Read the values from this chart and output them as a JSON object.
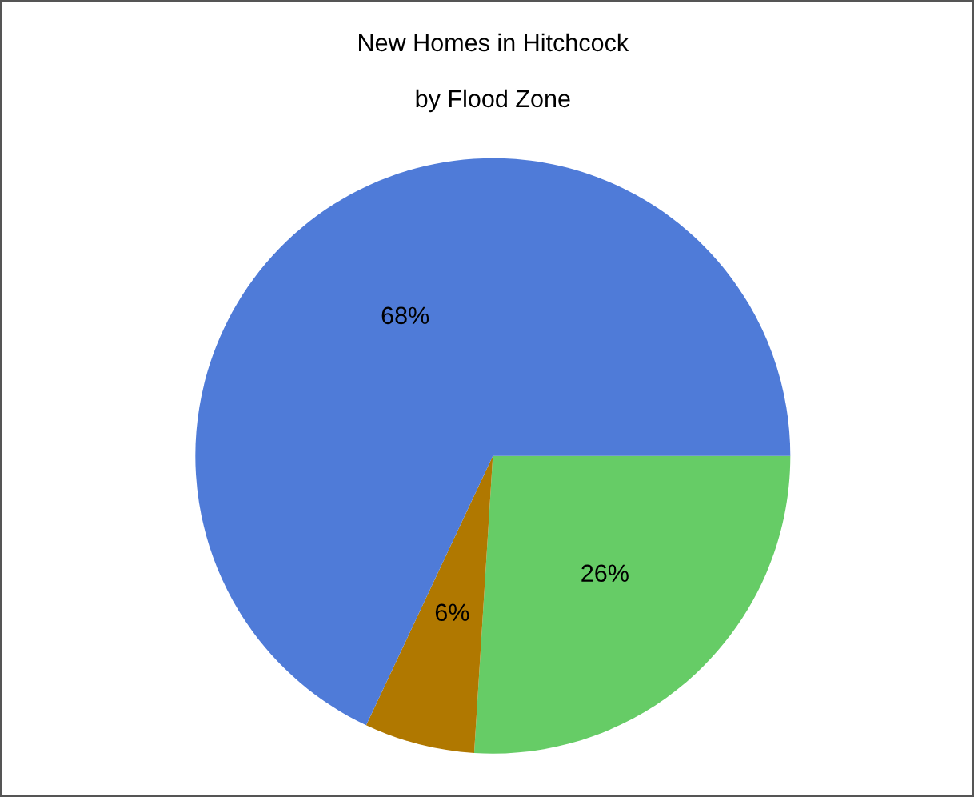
{
  "chart_data": {
    "type": "pie",
    "title": "New Homes in Hitchcock",
    "subtitle": "by Flood Zone",
    "categories": [
      null,
      null,
      null
    ],
    "values": [
      26,
      6,
      68
    ],
    "colors": [
      "#66cc66",
      "#b07800",
      "#4f7bd8"
    ],
    "value_labels": [
      "26%",
      "6%",
      "68%"
    ],
    "legend": false
  }
}
